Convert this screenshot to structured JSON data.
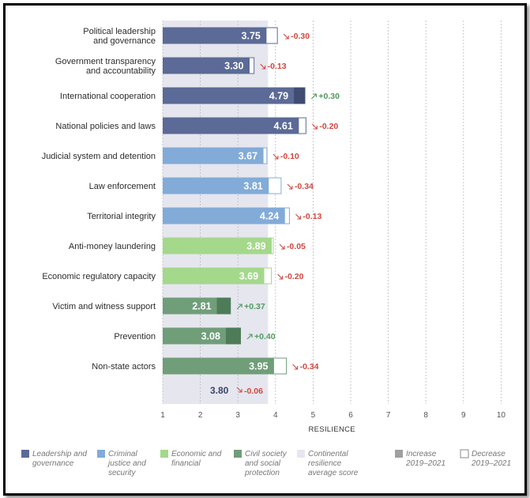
{
  "chart_data": {
    "type": "bar",
    "orientation": "horizontal",
    "xlabel": "RESILIENCE",
    "xlim": [
      1,
      10
    ],
    "xticks": [
      "1",
      "2",
      "3",
      "4",
      "5",
      "6",
      "7",
      "8",
      "9",
      "10"
    ],
    "grid": "vertical dashed",
    "continental_average": {
      "value": 3.8,
      "label": "3.80",
      "change": "-0.06",
      "direction": "down"
    },
    "categories": [
      {
        "name": "Political leadership and governance",
        "lines": [
          "Political leadership",
          "and governance"
        ],
        "value": 3.75,
        "label": "3.75",
        "change": -0.3,
        "change_label": "-0.30",
        "direction": "down",
        "group": "leadership"
      },
      {
        "name": "Government transparency and accountability",
        "lines": [
          "Government transparency",
          "and accountability"
        ],
        "value": 3.3,
        "label": "3.30",
        "change": -0.13,
        "change_label": "-0.13",
        "direction": "down",
        "group": "leadership"
      },
      {
        "name": "International cooperation",
        "lines": [
          "International cooperation"
        ],
        "value": 4.79,
        "label": "4.79",
        "change": 0.3,
        "change_label": "+0.30",
        "direction": "up",
        "group": "leadership"
      },
      {
        "name": "National policies and laws",
        "lines": [
          "National policies and laws"
        ],
        "value": 4.61,
        "label": "4.61",
        "change": -0.2,
        "change_label": "-0.20",
        "direction": "down",
        "group": "leadership"
      },
      {
        "name": "Judicial system and detention",
        "lines": [
          "Judicial system and detention"
        ],
        "value": 3.67,
        "label": "3.67",
        "change": -0.1,
        "change_label": "-0.10",
        "direction": "down",
        "group": "criminal"
      },
      {
        "name": "Law enforcement",
        "lines": [
          "Law enforcement"
        ],
        "value": 3.81,
        "label": "3.81",
        "change": -0.34,
        "change_label": "-0.34",
        "direction": "down",
        "group": "criminal"
      },
      {
        "name": "Territorial integrity",
        "lines": [
          "Territorial integrity"
        ],
        "value": 4.24,
        "label": "4.24",
        "change": -0.13,
        "change_label": "-0.13",
        "direction": "down",
        "group": "criminal"
      },
      {
        "name": "Anti-money laundering",
        "lines": [
          "Anti-money laundering"
        ],
        "value": 3.89,
        "label": "3.89",
        "change": -0.05,
        "change_label": "-0.05",
        "direction": "down",
        "group": "economic"
      },
      {
        "name": "Economic regulatory capacity",
        "lines": [
          "Economic regulatory capacity"
        ],
        "value": 3.69,
        "label": "3.69",
        "change": -0.2,
        "change_label": "-0.20",
        "direction": "down",
        "group": "economic"
      },
      {
        "name": "Victim and witness support",
        "lines": [
          "Victim and witness support"
        ],
        "value": 2.81,
        "label": "2.81",
        "change": 0.37,
        "change_label": "+0.37",
        "direction": "up",
        "group": "civil"
      },
      {
        "name": "Prevention",
        "lines": [
          "Prevention"
        ],
        "value": 3.08,
        "label": "3.08",
        "change": 0.4,
        "change_label": "+0.40",
        "direction": "up",
        "group": "civil"
      },
      {
        "name": "Non-state actors",
        "lines": [
          "Non-state actors"
        ],
        "value": 3.95,
        "label": "3.95",
        "change": -0.34,
        "change_label": "-0.34",
        "direction": "down",
        "group": "civil"
      }
    ],
    "groups": {
      "leadership": {
        "color": "#5b6a96",
        "dark": "#414c72"
      },
      "criminal": {
        "color": "#82abd8",
        "dark": "#5f86b6"
      },
      "economic": {
        "color": "#a4d88b",
        "dark": "#7fb869"
      },
      "civil": {
        "color": "#6f9e79",
        "dark": "#4e7c59"
      }
    },
    "colors": {
      "average_band": "#e6e6ef",
      "increase": "#a0a0a0",
      "up_change": "#4e9a5e",
      "down_change": "#d2473f"
    },
    "legend": [
      {
        "key": "leadership",
        "lines": [
          "Leadership and",
          "governance"
        ],
        "color": "#5b6a96"
      },
      {
        "key": "criminal",
        "lines": [
          "Criminal",
          "justice and",
          "security"
        ],
        "color": "#82abd8"
      },
      {
        "key": "economic",
        "lines": [
          "Economic and",
          "financial"
        ],
        "color": "#a4d88b"
      },
      {
        "key": "civil",
        "lines": [
          "Civil society",
          "and social",
          "protection"
        ],
        "color": "#6f9e79"
      },
      {
        "key": "average",
        "lines": [
          "Continental",
          "resilience",
          "average score"
        ],
        "color": "#e6e6ef"
      },
      {
        "key": "increase",
        "lines": [
          "Increase",
          "2019–2021"
        ],
        "color": "#a0a0a0"
      },
      {
        "key": "decrease",
        "lines": [
          "Decrease",
          "2019–2021"
        ],
        "color": "#ffffff"
      }
    ]
  }
}
